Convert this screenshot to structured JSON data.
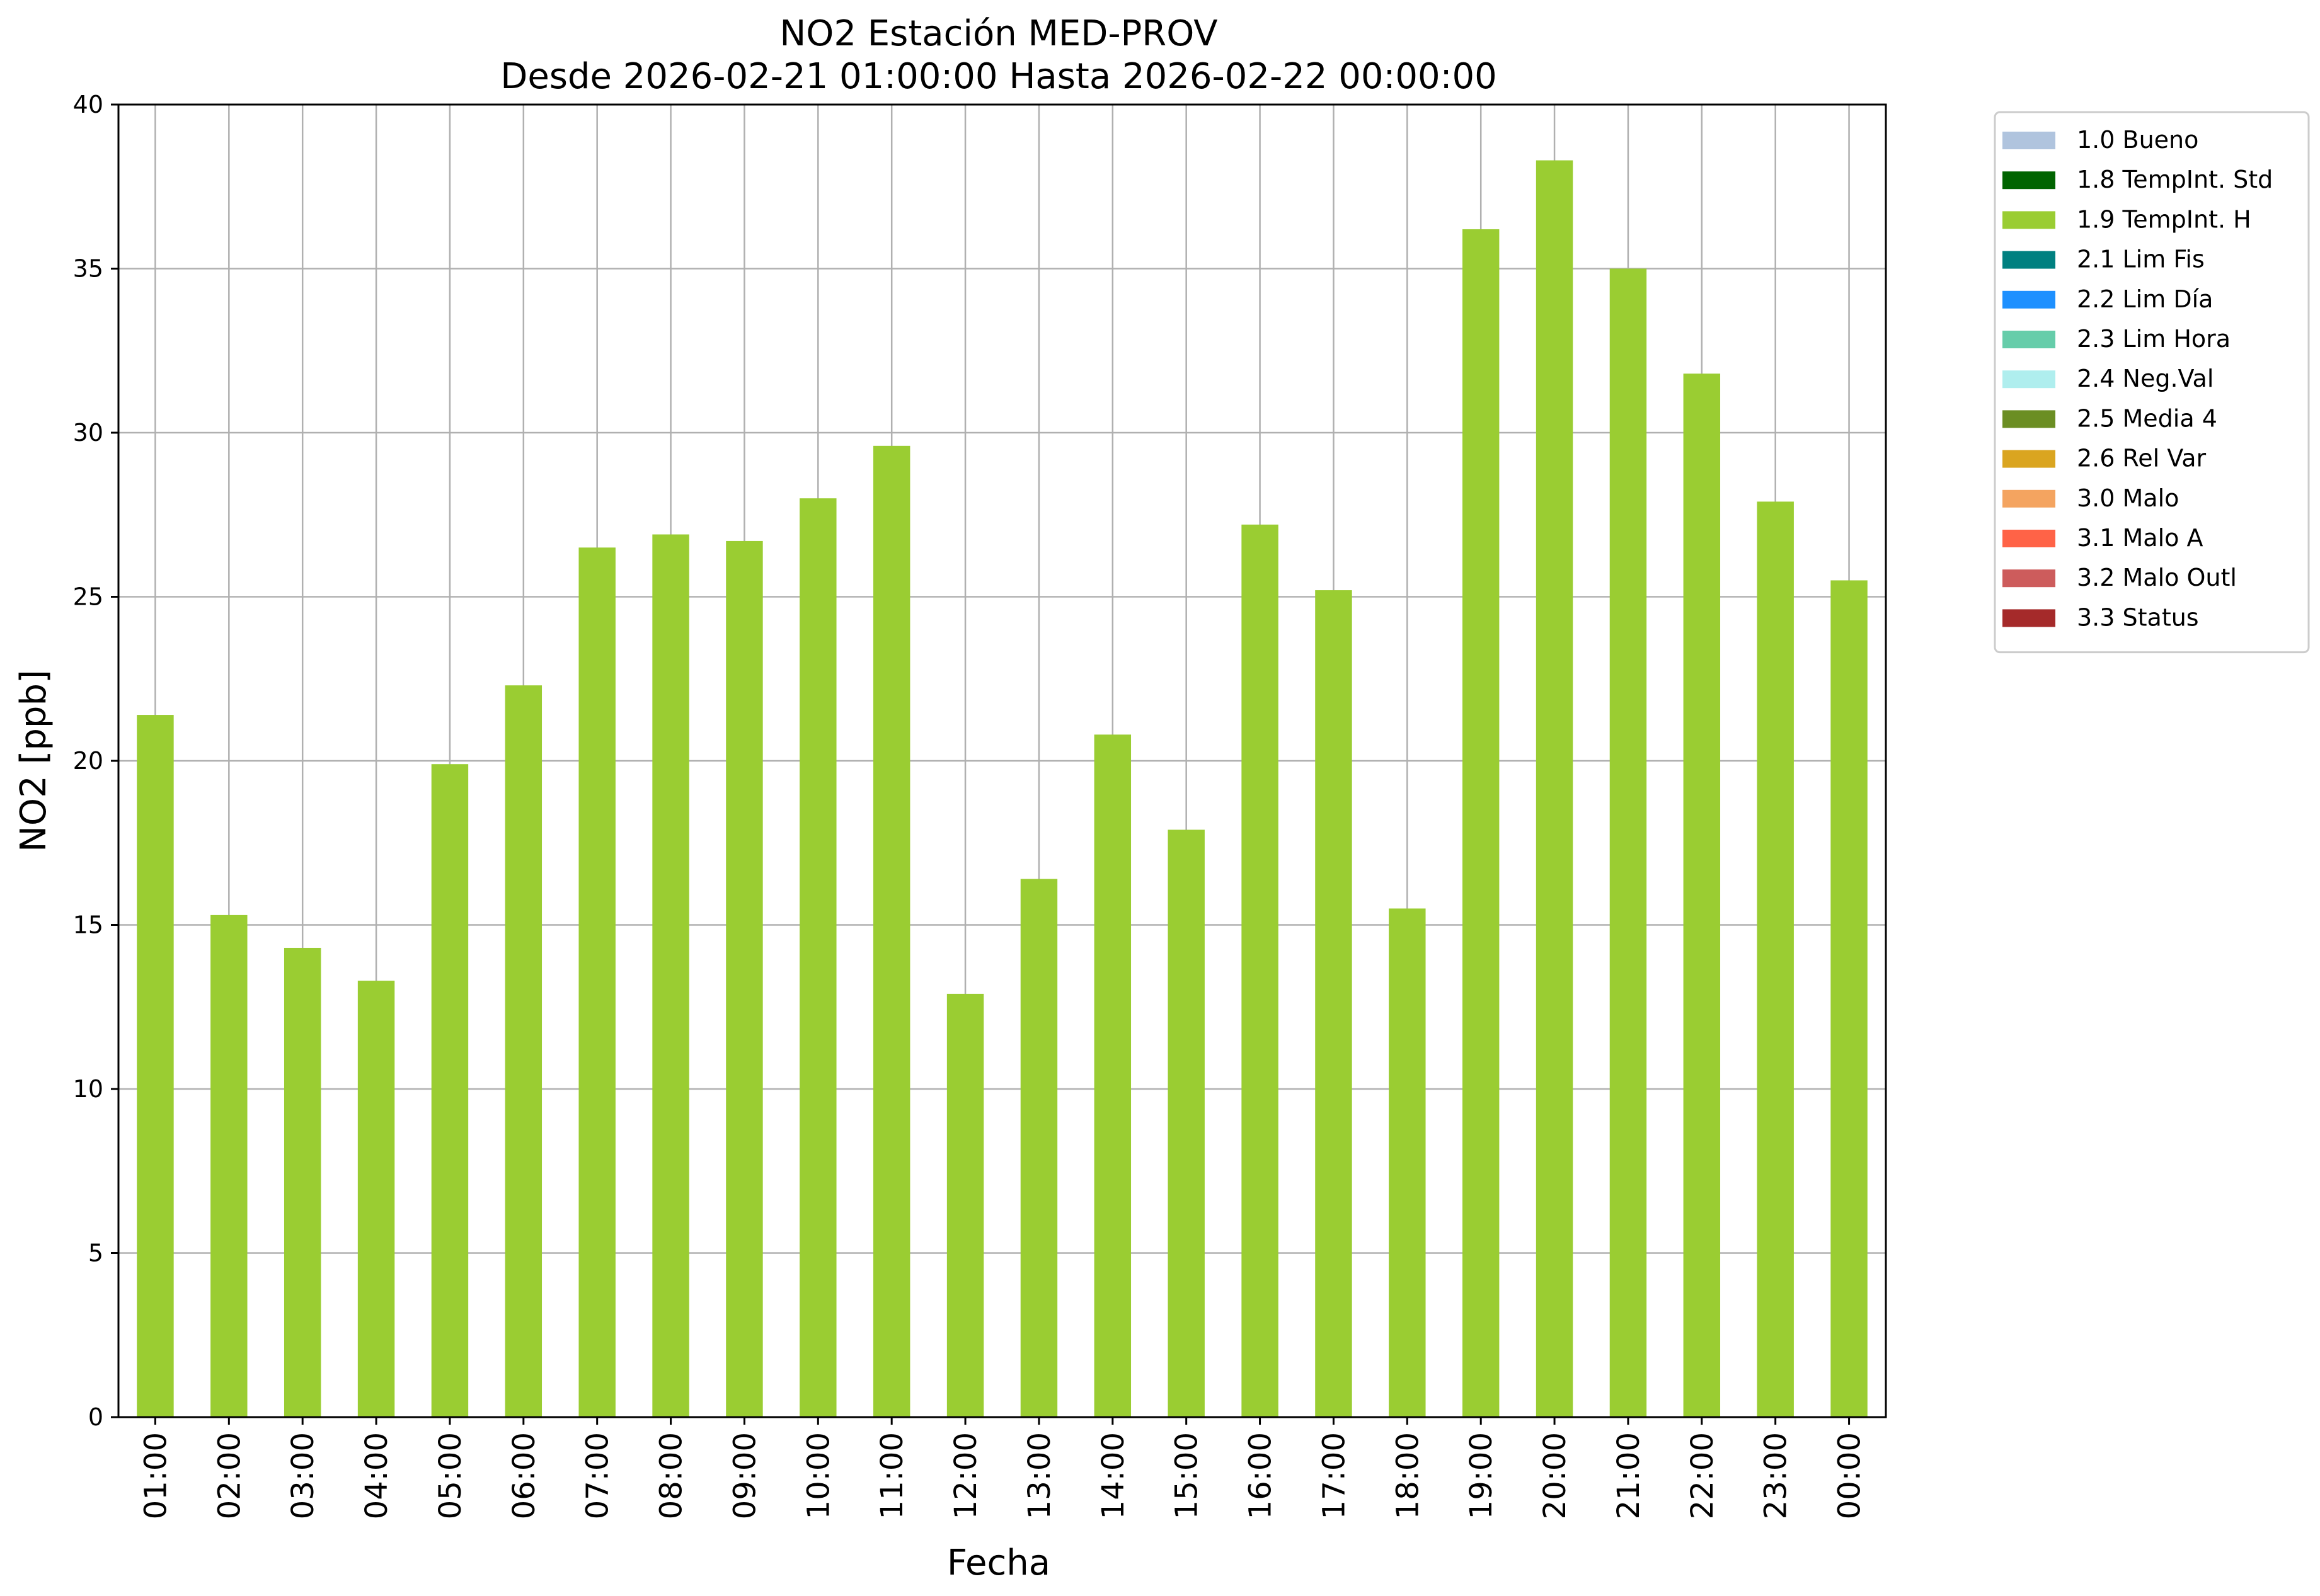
{
  "chart_data": {
    "type": "bar",
    "title": "NO2 Estación MED-PROV",
    "subtitle": "Desde 2026-02-21 01:00:00 Hasta 2026-02-22 00:00:00",
    "xlabel": "Fecha",
    "ylabel": "NO2 [ppb]",
    "ylim": [
      0,
      40
    ],
    "yticks": [
      "0",
      "5",
      "10",
      "15",
      "20",
      "25",
      "30",
      "35",
      "40"
    ],
    "grid": true,
    "legend_position": "outside-top-right",
    "categories": [
      "01:00",
      "02:00",
      "03:00",
      "04:00",
      "05:00",
      "06:00",
      "07:00",
      "08:00",
      "09:00",
      "10:00",
      "11:00",
      "12:00",
      "13:00",
      "14:00",
      "15:00",
      "16:00",
      "17:00",
      "18:00",
      "19:00",
      "20:00",
      "21:00",
      "22:00",
      "23:00",
      "00:00"
    ],
    "series": [
      {
        "name": "1.9 TempInt. H",
        "color": "#9acd32",
        "values": [
          21.4,
          15.3,
          14.3,
          13.3,
          19.9,
          22.3,
          26.5,
          26.9,
          26.7,
          28.0,
          29.6,
          12.9,
          16.4,
          20.8,
          17.9,
          27.2,
          25.2,
          15.5,
          36.2,
          38.3,
          35.0,
          31.8,
          27.9,
          25.5
        ]
      }
    ],
    "legend": [
      {
        "label": "1.0 Bueno",
        "color": "#b0c4de"
      },
      {
        "label": "1.8 TempInt. Std",
        "color": "#006400"
      },
      {
        "label": "1.9 TempInt. H",
        "color": "#9acd32"
      },
      {
        "label": "2.1 Lim Fis",
        "color": "#008080"
      },
      {
        "label": "2.2 Lim Día",
        "color": "#1e90ff"
      },
      {
        "label": "2.3 Lim Hora",
        "color": "#66cdaa"
      },
      {
        "label": "2.4 Neg.Val",
        "color": "#afeeee"
      },
      {
        "label": "2.5 Media 4",
        "color": "#6b8e23"
      },
      {
        "label": "2.6 Rel Var",
        "color": "#daa520"
      },
      {
        "label": "3.0 Malo",
        "color": "#f4a460"
      },
      {
        "label": "3.1 Malo A",
        "color": "#ff6347"
      },
      {
        "label": "3.2 Malo Outl",
        "color": "#cd5c5c"
      },
      {
        "label": "3.3 Status",
        "color": "#a52a2a"
      }
    ]
  }
}
